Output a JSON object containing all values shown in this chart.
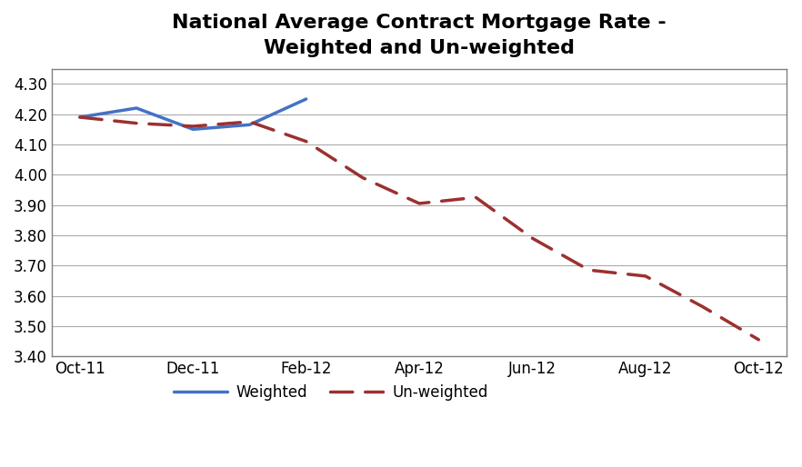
{
  "title": "National Average Contract Mortgage Rate -\nWeighted and Un-weighted",
  "weighted_x": [
    0,
    1,
    2,
    3,
    4
  ],
  "weighted_y": [
    4.19,
    4.22,
    4.15,
    4.165,
    4.25
  ],
  "unweighted_x": [
    0,
    1,
    2,
    3,
    4,
    5,
    6,
    7,
    8,
    9,
    10,
    11,
    12
  ],
  "unweighted_y": [
    4.19,
    4.17,
    4.16,
    4.175,
    4.11,
    3.99,
    3.905,
    3.925,
    3.79,
    3.685,
    3.665,
    3.565,
    3.455
  ],
  "xtick_positions": [
    0,
    2,
    4,
    6,
    8,
    10,
    12
  ],
  "xtick_labels": [
    "Oct-11",
    "Dec-11",
    "Feb-12",
    "Apr-12",
    "Jun-12",
    "Aug-12",
    "Oct-12"
  ],
  "ylim_bottom": 3.4,
  "ylim_top": 4.35,
  "yticks": [
    3.4,
    3.5,
    3.6,
    3.7,
    3.8,
    3.9,
    4.0,
    4.1,
    4.2,
    4.3
  ],
  "weighted_color": "#4472C4",
  "unweighted_color": "#9C3030",
  "background_color": "#FFFFFF",
  "grid_color": "#AAAAAA",
  "border_color": "#808080",
  "title_fontsize": 16,
  "legend_weighted": "Weighted",
  "legend_unweighted": "Un-weighted",
  "xlim_left": -0.5,
  "xlim_right": 12.5
}
